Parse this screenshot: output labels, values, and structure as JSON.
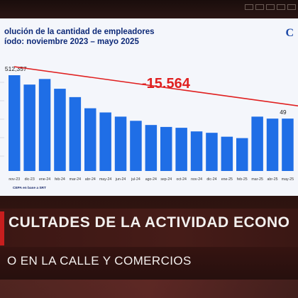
{
  "chart_data": {
    "type": "bar",
    "title_line1": "olución de la cantidad de empleadores",
    "title_line2": "íodo: noviembre 2023 – mayo 2025",
    "logo": "C",
    "categories": [
      "nov-23",
      "dic-23",
      "ene-24",
      "feb-24",
      "mar-24",
      "abr-24",
      "may-24",
      "jun-24",
      "jul-24",
      "ago-24",
      "sep-24",
      "oct-24",
      "nov-24",
      "dic-24",
      "ene-25",
      "feb-25",
      "mar-25",
      "abr-25",
      "may-25"
    ],
    "values": [
      512357,
      509000,
      511000,
      507500,
      504500,
      500500,
      499000,
      497500,
      496000,
      494500,
      493800,
      493500,
      492200,
      491700,
      490300,
      489800,
      497500,
      496793,
      496793
    ],
    "annotations": {
      "first_value": "512,357",
      "last_value": "49",
      "difference": "-15.564"
    },
    "source": "CEPA en base a SRT",
    "bar_color": "#1f6ee6",
    "trend_color": "#e02020"
  },
  "overlay": {
    "headline": "CULTADES DE LA ACTIVIDAD ECONO",
    "subline": "O EN LA CALLE Y COMERCIOS"
  }
}
